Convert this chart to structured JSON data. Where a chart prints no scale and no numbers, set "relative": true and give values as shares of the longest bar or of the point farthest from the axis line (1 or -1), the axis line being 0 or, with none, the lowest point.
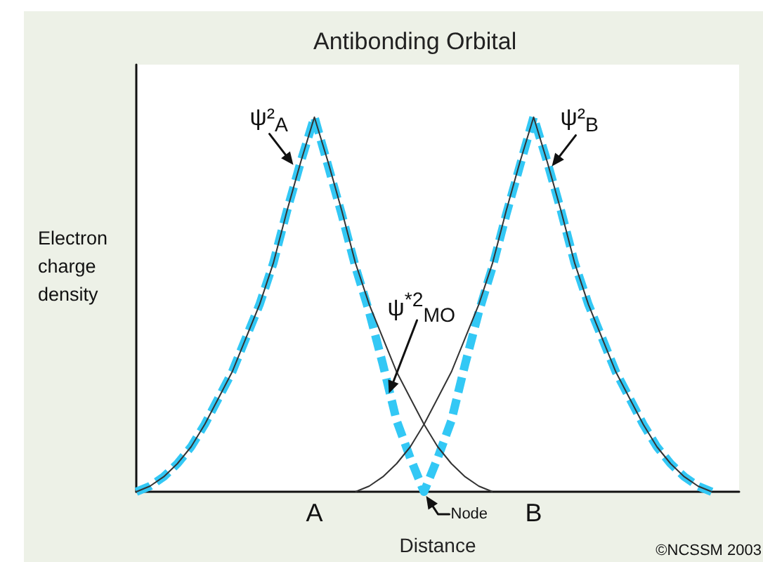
{
  "chart_data": {
    "type": "line",
    "title": "Antibonding Orbital",
    "xlabel": "Distance",
    "ylabel": "Electron charge density",
    "relative": true,
    "marker": "none",
    "categories": [
      null,
      null,
      null,
      null,
      null,
      null,
      null,
      null,
      null,
      null,
      null,
      null,
      null,
      "A",
      null,
      null,
      null,
      null,
      null,
      null,
      null,
      null,
      null,
      null,
      null,
      null,
      null,
      null,
      null,
      "B",
      null,
      null,
      null,
      null,
      null,
      null,
      null,
      null,
      null,
      null,
      null,
      null,
      null,
      null,
      null
    ],
    "series": [
      {
        "name": "ψ²$_{A}$",
        "color": "#333333",
        "line_style": "solid",
        "values": [
          0,
          0.015,
          0.04,
          0.075,
          0.12,
          0.18,
          0.25,
          0.32,
          0.41,
          0.5,
          0.61,
          0.75,
          0.88,
          1,
          0.88,
          0.75,
          0.61,
          0.5,
          0.41,
          0.32,
          0.25,
          0.18,
          0.12,
          0.075,
          0.04,
          0.015,
          0,
          null,
          null,
          null,
          null,
          null,
          null,
          null,
          null,
          null,
          null,
          null,
          null,
          null,
          null,
          null,
          null,
          null,
          null
        ]
      },
      {
        "name": "ψ²$_{B}$",
        "color": "#333333",
        "line_style": "solid",
        "values": [
          null,
          null,
          null,
          null,
          null,
          null,
          null,
          null,
          null,
          null,
          null,
          null,
          null,
          null,
          null,
          null,
          0,
          0.015,
          0.04,
          0.075,
          0.12,
          0.18,
          0.25,
          0.32,
          0.41,
          0.5,
          0.61,
          0.75,
          0.88,
          1,
          0.88,
          0.75,
          0.61,
          0.5,
          0.41,
          0.32,
          0.25,
          0.18,
          0.12,
          0.075,
          0.04,
          0.015,
          0,
          null,
          null
        ]
      },
      {
        "name": "ψ$^{*2}$$_{MO}$",
        "color": "#33c8f5",
        "line_style": "dashed",
        "values": [
          0,
          0.015,
          0.04,
          0.075,
          0.12,
          0.18,
          0.25,
          0.32,
          0.41,
          0.5,
          0.61,
          0.75,
          0.88,
          1,
          0.87,
          0.74,
          0.6,
          0.48,
          0.34,
          0.19,
          0.09,
          0,
          0.09,
          0.19,
          0.34,
          0.48,
          0.6,
          0.74,
          0.87,
          1,
          0.88,
          0.75,
          0.61,
          0.5,
          0.41,
          0.32,
          0.25,
          0.18,
          0.12,
          0.075,
          0.04,
          0.015,
          0,
          null,
          null
        ]
      }
    ],
    "annotations": [
      "Node",
      "©NCSSM 2003"
    ]
  }
}
